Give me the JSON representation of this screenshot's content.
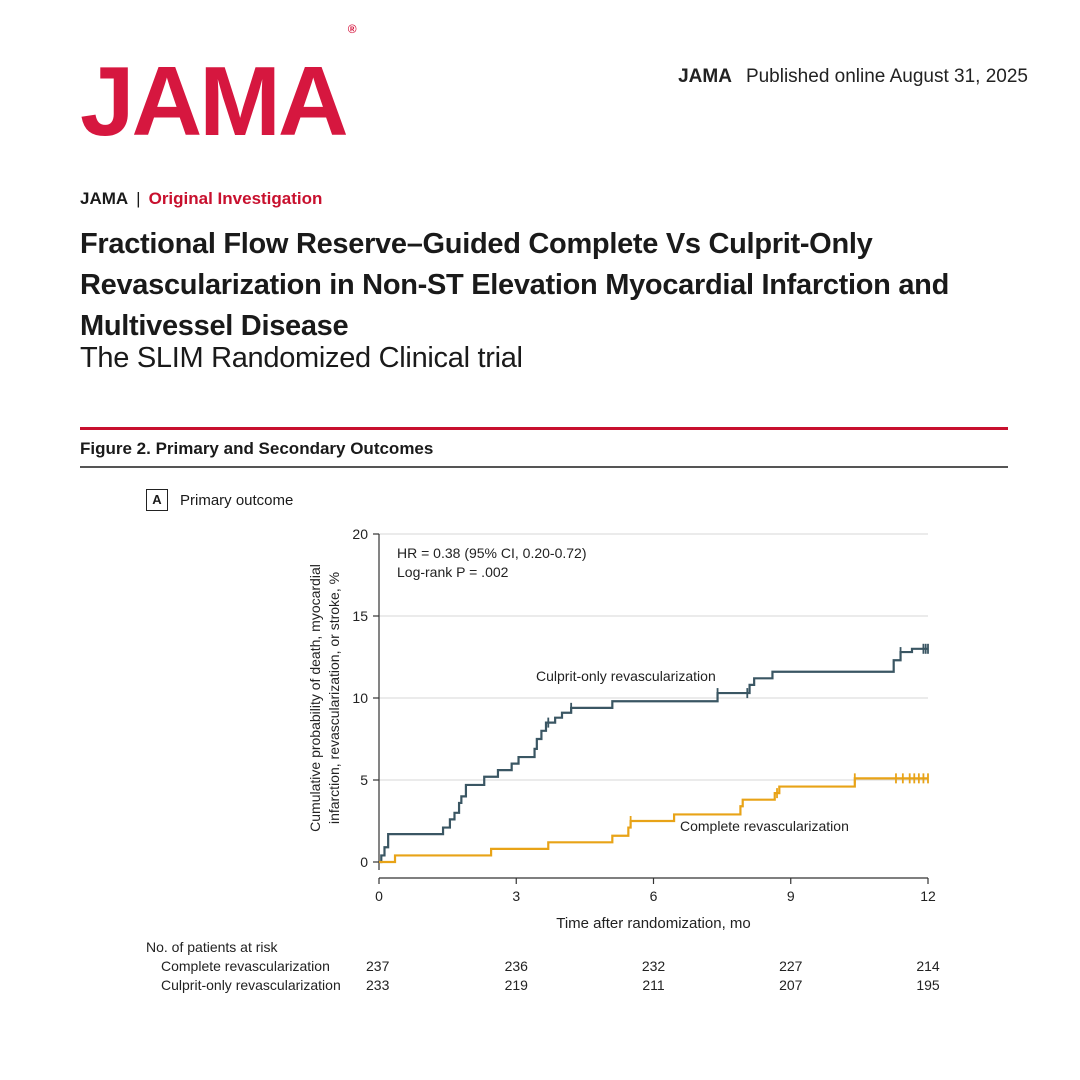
{
  "header": {
    "logo": "JAMA",
    "logo_mark": "®",
    "publisher": "JAMA",
    "published": "Published online August  31, 2025"
  },
  "article": {
    "journal": "JAMA",
    "separator": "|",
    "section": "Original Investigation",
    "title": "Fractional Flow Reserve–Guided Complete Vs Culprit-Only Revascularization in Non-ST Elevation Myocardial Infarction and Multivessel Disease",
    "subtitle": "The SLIM Randomized Clinical trial"
  },
  "figure": {
    "title": "Figure 2. Primary and Secondary Outcomes",
    "panel_letter": "A",
    "panel_label": "Primary outcome"
  },
  "colors": {
    "brand": "#d6173f",
    "culprit": "#3a5663",
    "complete": "#e8a317",
    "rule": "#c8102e"
  },
  "chart_data": {
    "type": "line",
    "xlabel": "Time after randomization, mo",
    "ylabel_lines": [
      "Cumulative probability of death, myocardial",
      "infarction, revascularization, or stroke, %"
    ],
    "xlim": [
      0,
      12
    ],
    "ylim": [
      0,
      20
    ],
    "x_ticks": [
      0,
      3,
      6,
      9,
      12
    ],
    "y_ticks": [
      0,
      5,
      10,
      15,
      20
    ],
    "grid": "horizontal",
    "annotation_lines": [
      "HR = 0.38 (95% CI, 0.20-0.72)",
      "Log-rank P = .002"
    ],
    "series": [
      {
        "name": "Culprit-only revascularization",
        "color": "#3a5663",
        "steps": [
          [
            0,
            0
          ],
          [
            0.05,
            0.4
          ],
          [
            0.12,
            0.9
          ],
          [
            0.2,
            1.7
          ],
          [
            0.8,
            1.7
          ],
          [
            1.4,
            2.1
          ],
          [
            1.55,
            2.6
          ],
          [
            1.65,
            3.0
          ],
          [
            1.75,
            3.6
          ],
          [
            1.8,
            4.0
          ],
          [
            1.9,
            4.7
          ],
          [
            2.3,
            5.2
          ],
          [
            2.6,
            5.6
          ],
          [
            2.9,
            6.0
          ],
          [
            3.05,
            6.4
          ],
          [
            3.4,
            6.9
          ],
          [
            3.45,
            7.5
          ],
          [
            3.55,
            8.0
          ],
          [
            3.65,
            8.5
          ],
          [
            3.85,
            8.8
          ],
          [
            4.0,
            9.1
          ],
          [
            4.2,
            9.4
          ],
          [
            5.1,
            9.8
          ],
          [
            7.4,
            10.3
          ],
          [
            8.1,
            10.8
          ],
          [
            8.2,
            11.2
          ],
          [
            8.6,
            11.6
          ],
          [
            11.25,
            12.3
          ],
          [
            11.4,
            12.8
          ],
          [
            11.65,
            13.0
          ],
          [
            12,
            13.0
          ]
        ],
        "censor_x": [
          3.7,
          4.2,
          7.4,
          8.05,
          11.4,
          11.9,
          11.95,
          12
        ]
      },
      {
        "name": "Complete revascularization",
        "color": "#e8a317",
        "steps": [
          [
            0,
            0
          ],
          [
            0.35,
            0.4
          ],
          [
            2.45,
            0.8
          ],
          [
            3.7,
            1.2
          ],
          [
            5.1,
            1.6
          ],
          [
            5.45,
            2.1
          ],
          [
            5.5,
            2.5
          ],
          [
            6.45,
            2.9
          ],
          [
            7.9,
            3.4
          ],
          [
            7.95,
            3.8
          ],
          [
            8.65,
            4.2
          ],
          [
            8.75,
            4.6
          ],
          [
            10.4,
            5.1
          ],
          [
            12,
            5.1
          ]
        ],
        "censor_x": [
          5.5,
          8.7,
          10.4,
          11.3,
          11.45,
          11.6,
          11.7,
          11.8,
          11.9,
          12
        ]
      }
    ],
    "labels": [
      {
        "text": "Culprit-only revascularization",
        "series": 0
      },
      {
        "text": "Complete revascularization",
        "series": 1
      }
    ],
    "risk_table": {
      "title": "No. of patients at risk",
      "rows": [
        {
          "label": "Complete revascularization",
          "values": [
            "237",
            "236",
            "232",
            "227",
            "214"
          ]
        },
        {
          "label": "Culprit-only revascularization",
          "values": [
            "233",
            "219",
            "211",
            "207",
            "195"
          ]
        }
      ]
    }
  }
}
